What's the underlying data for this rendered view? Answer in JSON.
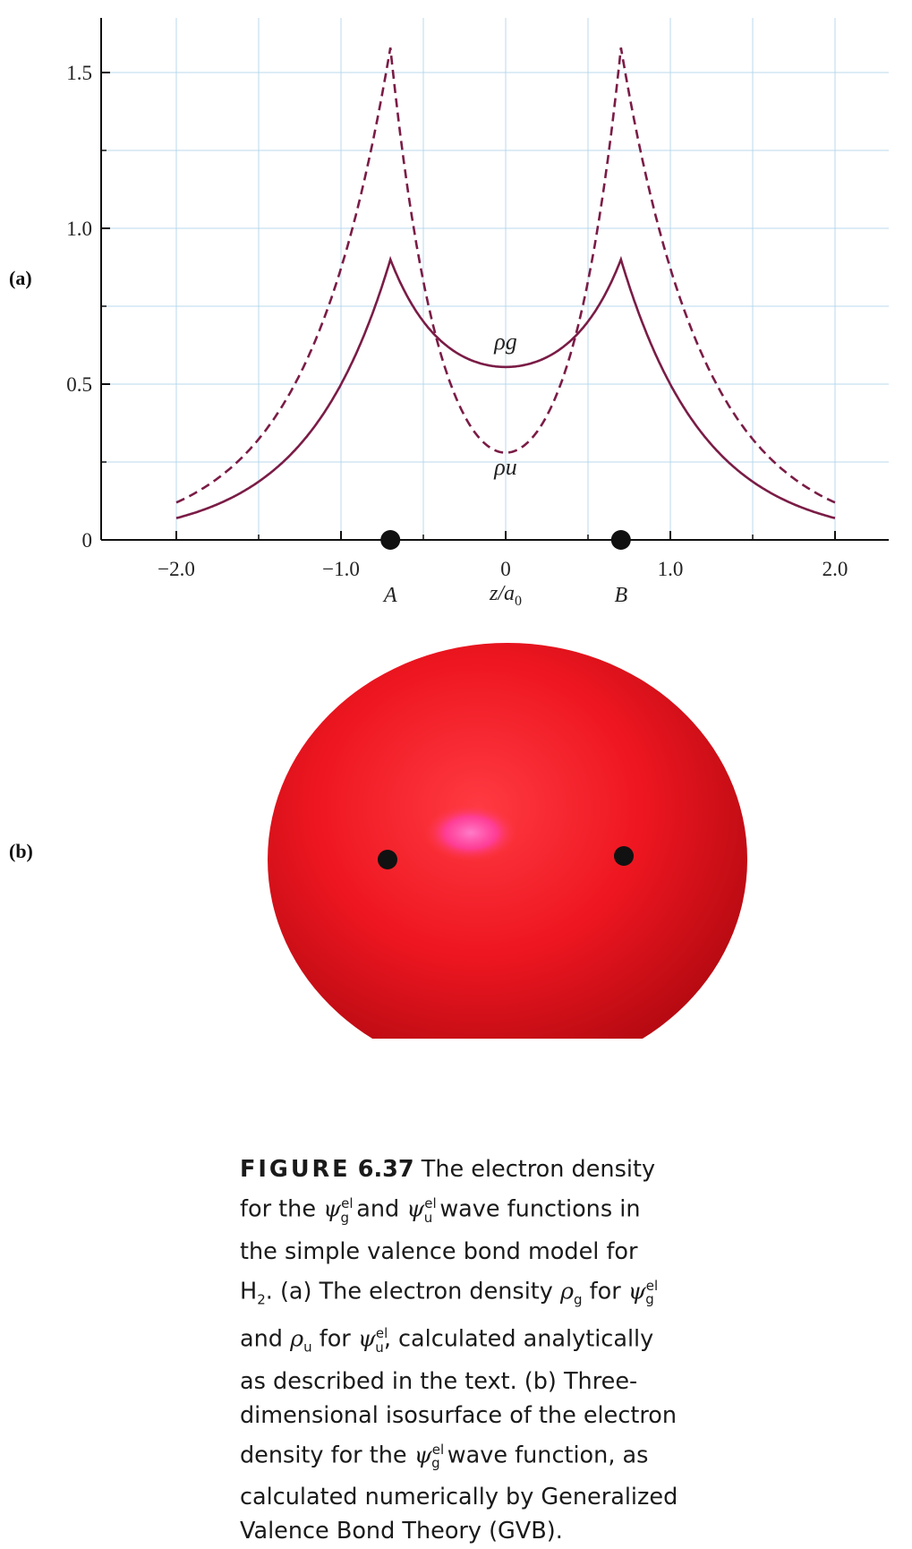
{
  "chart_data": [
    {
      "type": "line",
      "panel_label": "(a)",
      "xlabel": "z/a₀",
      "xlim": [
        -2.4,
        2.35
      ],
      "ylim": [
        0,
        1.65
      ],
      "x_ticks": [
        -2.0,
        -1.0,
        0,
        1.0,
        2.0
      ],
      "x_tick_labels": [
        "−2.0",
        "−1.0",
        "0",
        "1.0",
        "2.0"
      ],
      "y_ticks": [
        0,
        0.5,
        1.0,
        1.5
      ],
      "y_tick_labels": [
        "0",
        "0.5",
        "1.0",
        "1.5"
      ],
      "grid": true,
      "nuclei": [
        {
          "label": "A",
          "z": -0.7
        },
        {
          "label": "B",
          "z": 0.7
        }
      ],
      "series": [
        {
          "name": "ρg",
          "style": "solid",
          "x": [
            -2.0,
            -1.6,
            -1.2,
            -1.0,
            -0.8,
            -0.7,
            -0.6,
            -0.4,
            -0.2,
            0.0,
            0.2,
            0.4,
            0.6,
            0.7,
            0.8,
            1.0,
            1.2,
            1.6,
            2.0
          ],
          "y": [
            0.07,
            0.16,
            0.38,
            0.55,
            0.78,
            0.9,
            0.8,
            0.64,
            0.58,
            0.555,
            0.58,
            0.64,
            0.8,
            0.9,
            0.78,
            0.55,
            0.38,
            0.16,
            0.07
          ]
        },
        {
          "name": "ρu",
          "style": "dashed",
          "x": [
            -2.0,
            -1.6,
            -1.2,
            -1.0,
            -0.8,
            -0.7,
            -0.6,
            -0.4,
            -0.2,
            0.0,
            0.2,
            0.4,
            0.6,
            0.7,
            0.8,
            1.0,
            1.2,
            1.6,
            2.0
          ],
          "y": [
            0.12,
            0.28,
            0.62,
            0.88,
            1.3,
            1.58,
            1.2,
            0.62,
            0.38,
            0.28,
            0.38,
            0.62,
            1.2,
            1.58,
            1.3,
            0.88,
            0.62,
            0.28,
            0.12
          ]
        }
      ],
      "colors": {
        "curve": "#7a1c46",
        "grid": "#b9d8ec",
        "axis": "#111111"
      }
    }
  ],
  "panel_b": {
    "label": "(b)",
    "colors": {
      "surface": "#e8131d",
      "highlight": "#ff5fb8",
      "nucleus": "#111111"
    }
  },
  "caption": {
    "lead": "FIGURE",
    "number": "6.37",
    "line1": "The electron density",
    "line2_a": "for the",
    "line2_b": "and",
    "line2_c": "wave functions in",
    "line3": "the simple valence bond model for",
    "line4_a": "H",
    "line4_b": ". (a) The electron density",
    "line4_c": "for",
    "line5_a": "and",
    "line5_b": "for",
    "line5_c": ", calculated analytically",
    "line6": "as described in the text. (b) Three-",
    "line7": "dimensional isosurface of the electron",
    "line8_a": "density for the",
    "line8_b": "wave function, as",
    "line9": "calculated numerically by Generalized",
    "line10": "Valence Bond Theory (GVB).",
    "psi": "ψ",
    "rho": "ρ",
    "sup_el": "el",
    "sub_g": "g",
    "sub_u": "u",
    "sub_2": "2"
  }
}
